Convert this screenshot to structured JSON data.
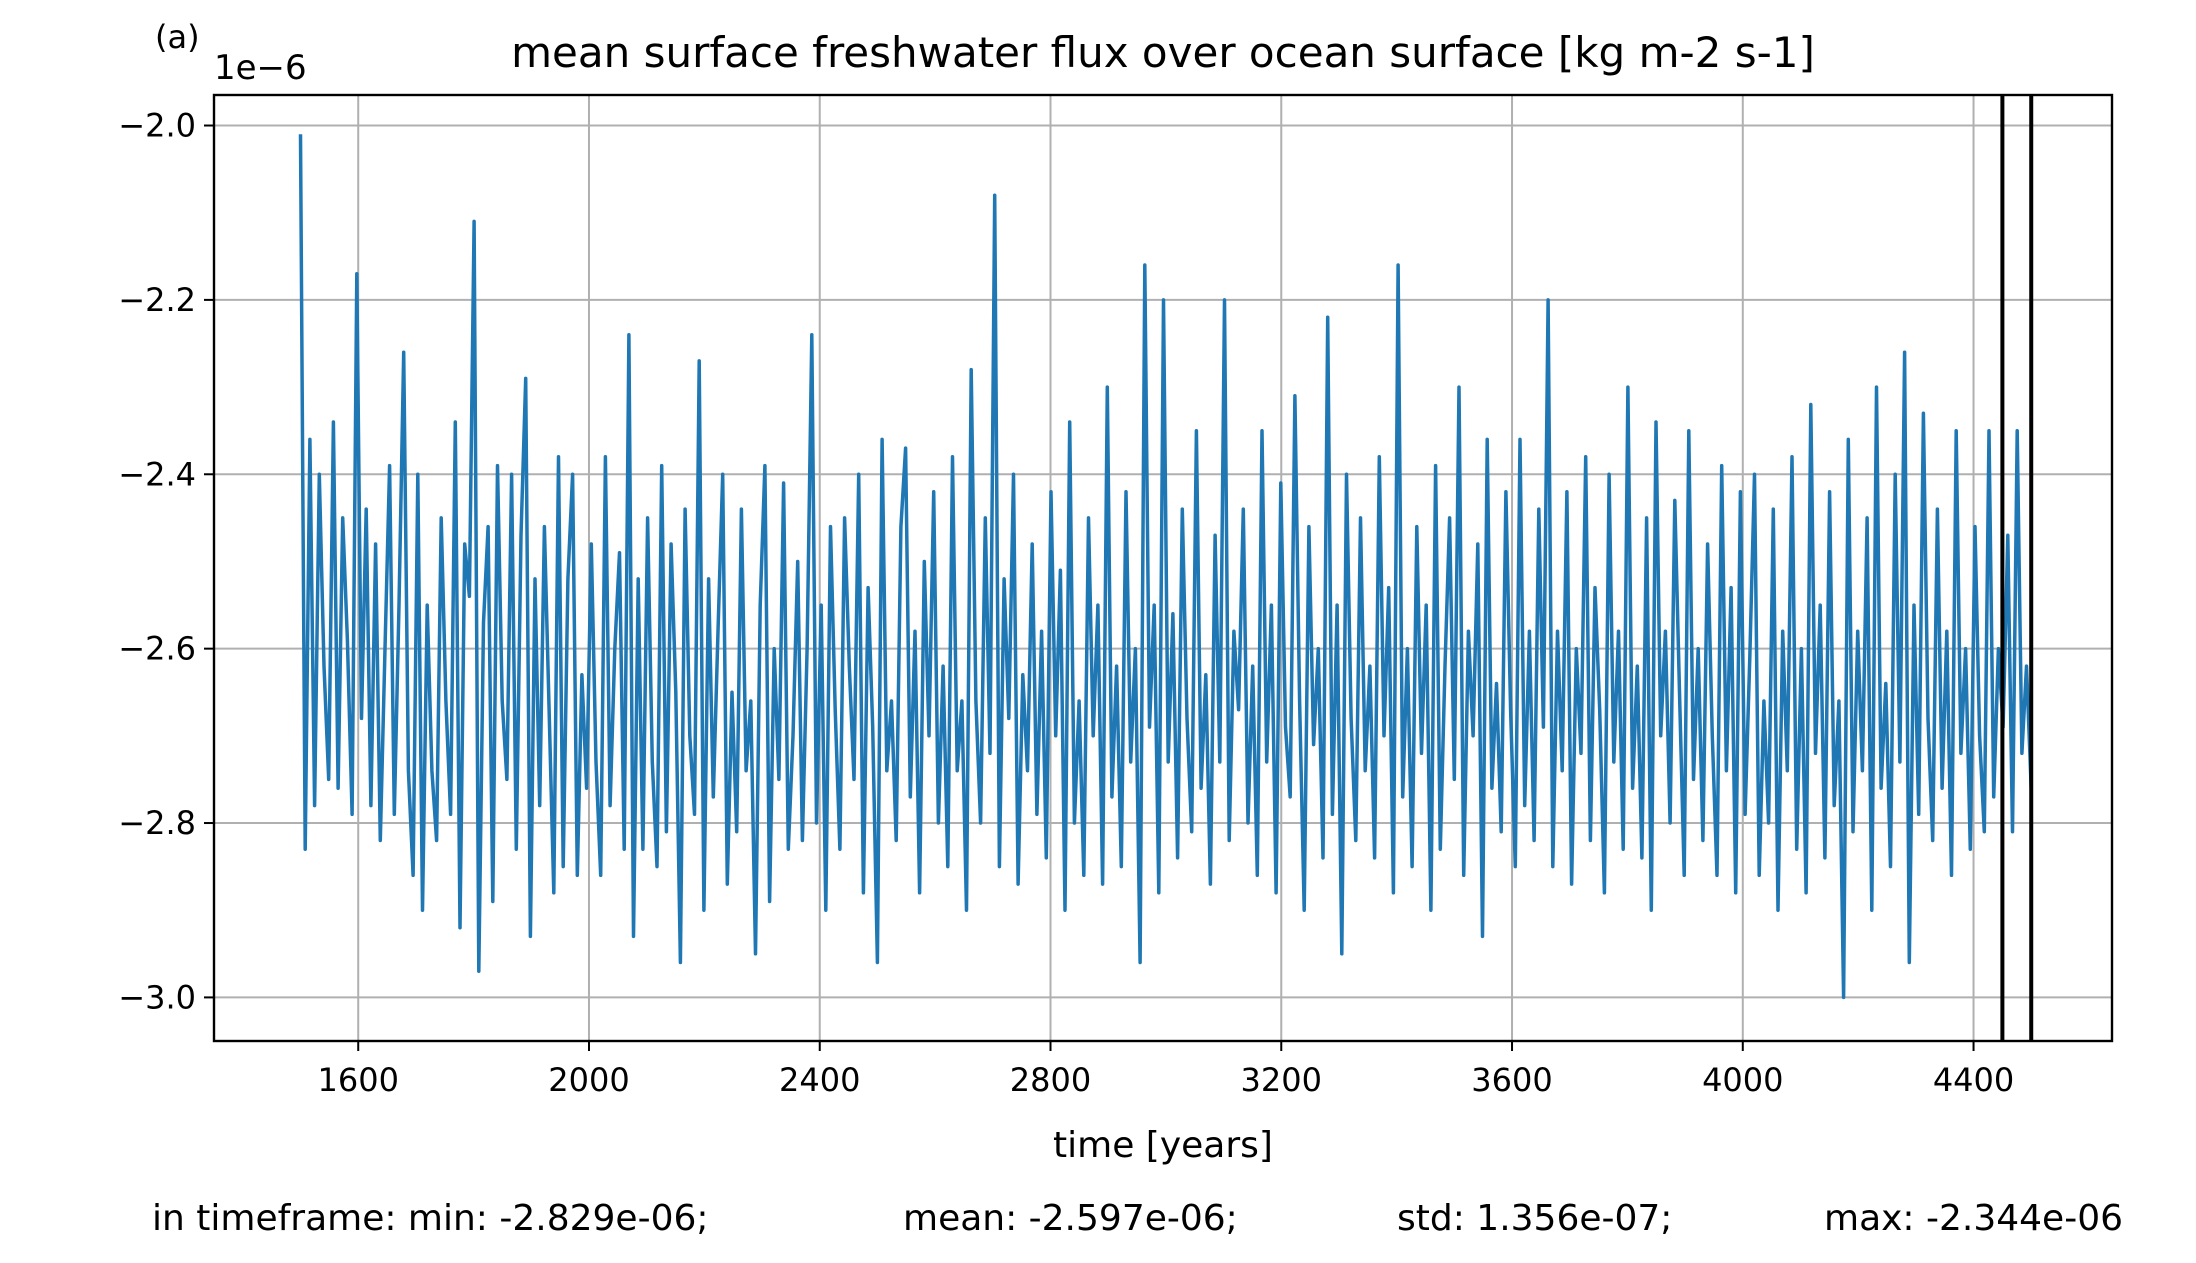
{
  "panel_label": "(a)",
  "offset_label": "1e−6",
  "stats": {
    "min": "in timeframe: min: -2.829e-06;",
    "mean": "mean: -2.597e-06;",
    "std": "std: 1.356e-07;",
    "max": "max: -2.344e-06"
  },
  "chart_data": {
    "type": "line",
    "title": "mean surface freshwater flux over ocean surface [kg m-2 s-1]",
    "xlabel": "time [years]",
    "ylabel": "",
    "xlim": [
      1350,
      4640
    ],
    "ylim": [
      -3.05,
      -1.965
    ],
    "y_multiplier": "1e-6",
    "xticks": [
      1600,
      2000,
      2400,
      2800,
      3200,
      3600,
      4000,
      4400
    ],
    "xtick_labels": [
      "1600",
      "2000",
      "2400",
      "2800",
      "3200",
      "3600",
      "4000",
      "4400"
    ],
    "yticks": [
      -2.0,
      -2.2,
      -2.4,
      -2.6,
      -2.8,
      -3.0
    ],
    "ytick_labels": [
      "−2.0",
      "−2.2",
      "−2.4",
      "−2.6",
      "−2.8",
      "−3.0"
    ],
    "grid": true,
    "line_color": "#1f77b4",
    "vlines": [
      4450,
      4500
    ],
    "vline_color": "#000000",
    "series": [
      {
        "start_year": 1500,
        "end_year": 4500,
        "values": [
          -2.01,
          -2.83,
          -2.36,
          -2.78,
          -2.4,
          -2.62,
          -2.75,
          -2.34,
          -2.76,
          -2.45,
          -2.59,
          -2.79,
          -2.17,
          -2.68,
          -2.44,
          -2.78,
          -2.48,
          -2.82,
          -2.6,
          -2.39,
          -2.79,
          -2.55,
          -2.26,
          -2.74,
          -2.86,
          -2.4,
          -2.9,
          -2.55,
          -2.74,
          -2.82,
          -2.45,
          -2.66,
          -2.79,
          -2.34,
          -2.92,
          -2.48,
          -2.54,
          -2.11,
          -2.97,
          -2.57,
          -2.46,
          -2.89,
          -2.39,
          -2.66,
          -2.75,
          -2.4,
          -2.83,
          -2.47,
          -2.29,
          -2.93,
          -2.52,
          -2.78,
          -2.46,
          -2.67,
          -2.88,
          -2.38,
          -2.85,
          -2.52,
          -2.4,
          -2.86,
          -2.63,
          -2.76,
          -2.48,
          -2.73,
          -2.86,
          -2.38,
          -2.78,
          -2.6,
          -2.49,
          -2.83,
          -2.24,
          -2.93,
          -2.52,
          -2.83,
          -2.45,
          -2.73,
          -2.85,
          -2.39,
          -2.81,
          -2.48,
          -2.65,
          -2.96,
          -2.44,
          -2.7,
          -2.79,
          -2.27,
          -2.9,
          -2.52,
          -2.77,
          -2.58,
          -2.4,
          -2.87,
          -2.65,
          -2.81,
          -2.44,
          -2.74,
          -2.66,
          -2.95,
          -2.55,
          -2.39,
          -2.89,
          -2.6,
          -2.75,
          -2.41,
          -2.83,
          -2.7,
          -2.5,
          -2.82,
          -2.6,
          -2.24,
          -2.8,
          -2.55,
          -2.9,
          -2.46,
          -2.67,
          -2.83,
          -2.45,
          -2.62,
          -2.75,
          -2.4,
          -2.88,
          -2.53,
          -2.69,
          -2.96,
          -2.36,
          -2.74,
          -2.66,
          -2.82,
          -2.46,
          -2.37,
          -2.77,
          -2.58,
          -2.88,
          -2.5,
          -2.7,
          -2.42,
          -2.8,
          -2.62,
          -2.85,
          -2.38,
          -2.74,
          -2.66,
          -2.9,
          -2.28,
          -2.66,
          -2.8,
          -2.45,
          -2.72,
          -2.08,
          -2.85,
          -2.52,
          -2.68,
          -2.4,
          -2.87,
          -2.63,
          -2.74,
          -2.48,
          -2.79,
          -2.58,
          -2.84,
          -2.42,
          -2.7,
          -2.51,
          -2.9,
          -2.34,
          -2.8,
          -2.66,
          -2.86,
          -2.45,
          -2.7,
          -2.55,
          -2.87,
          -2.3,
          -2.77,
          -2.62,
          -2.85,
          -2.42,
          -2.73,
          -2.6,
          -2.96,
          -2.16,
          -2.69,
          -2.55,
          -2.88,
          -2.2,
          -2.73,
          -2.56,
          -2.84,
          -2.44,
          -2.68,
          -2.81,
          -2.35,
          -2.76,
          -2.63,
          -2.87,
          -2.47,
          -2.73,
          -2.2,
          -2.82,
          -2.58,
          -2.67,
          -2.44,
          -2.8,
          -2.62,
          -2.86,
          -2.35,
          -2.73,
          -2.55,
          -2.88,
          -2.41,
          -2.69,
          -2.77,
          -2.31,
          -2.66,
          -2.9,
          -2.46,
          -2.71,
          -2.6,
          -2.84,
          -2.22,
          -2.79,
          -2.55,
          -2.95,
          -2.4,
          -2.68,
          -2.82,
          -2.45,
          -2.74,
          -2.62,
          -2.84,
          -2.38,
          -2.7,
          -2.53,
          -2.88,
          -2.16,
          -2.77,
          -2.6,
          -2.85,
          -2.46,
          -2.72,
          -2.55,
          -2.9,
          -2.39,
          -2.83,
          -2.62,
          -2.45,
          -2.75,
          -2.3,
          -2.86,
          -2.58,
          -2.7,
          -2.48,
          -2.93,
          -2.36,
          -2.76,
          -2.64,
          -2.81,
          -2.42,
          -2.67,
          -2.85,
          -2.36,
          -2.78,
          -2.58,
          -2.82,
          -2.44,
          -2.69,
          -2.2,
          -2.85,
          -2.58,
          -2.74,
          -2.42,
          -2.87,
          -2.6,
          -2.72,
          -2.38,
          -2.82,
          -2.53,
          -2.67,
          -2.88,
          -2.4,
          -2.73,
          -2.58,
          -2.83,
          -2.3,
          -2.76,
          -2.62,
          -2.84,
          -2.45,
          -2.9,
          -2.34,
          -2.7,
          -2.58,
          -2.8,
          -2.43,
          -2.65,
          -2.86,
          -2.35,
          -2.75,
          -2.6,
          -2.82,
          -2.48,
          -2.7,
          -2.86,
          -2.39,
          -2.74,
          -2.53,
          -2.88,
          -2.42,
          -2.79,
          -2.61,
          -2.4,
          -2.86,
          -2.66,
          -2.8,
          -2.44,
          -2.9,
          -2.58,
          -2.74,
          -2.38,
          -2.83,
          -2.6,
          -2.88,
          -2.32,
          -2.72,
          -2.55,
          -2.84,
          -2.42,
          -2.78,
          -2.66,
          -3.0,
          -2.36,
          -2.81,
          -2.58,
          -2.74,
          -2.45,
          -2.9,
          -2.3,
          -2.76,
          -2.64,
          -2.85,
          -2.4,
          -2.73,
          -2.26,
          -2.96,
          -2.55,
          -2.79,
          -2.33,
          -2.68,
          -2.82,
          -2.44,
          -2.76,
          -2.58,
          -2.86,
          -2.35,
          -2.72,
          -2.6,
          -2.83,
          -2.46,
          -2.7,
          -2.81,
          -2.35,
          -2.77,
          -2.6,
          -2.69,
          -2.47,
          -2.81,
          -2.35,
          -2.72,
          -2.62,
          -2.76
        ]
      }
    ]
  }
}
